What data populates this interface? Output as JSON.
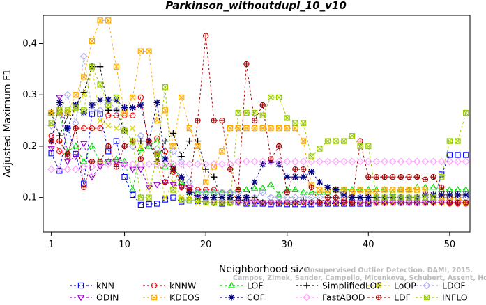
{
  "chart_data": {
    "type": "line",
    "title": "Parkinson_withoutdupl_10_v10",
    "xlabel": "Neighborhood size",
    "ylabel": "Adjusted Maximum F1",
    "xlim": [
      0,
      52.5
    ],
    "ylim": [
      0.033,
      0.455
    ],
    "x_ticks": [
      1,
      10,
      20,
      30,
      40,
      50
    ],
    "y_ticks": [
      0.1,
      0.2,
      0.3,
      0.4
    ],
    "x_tick_labels": [
      "1",
      "10",
      "20",
      "30",
      "40",
      "50"
    ],
    "y_tick_labels": [
      "0.1",
      "0.2",
      "0.3",
      "0.4"
    ],
    "grid": false,
    "legend_position": "bottom",
    "x": [
      1,
      2,
      3,
      4,
      5,
      6,
      7,
      8,
      9,
      10,
      11,
      12,
      13,
      14,
      15,
      16,
      17,
      18,
      19,
      20,
      21,
      22,
      23,
      24,
      25,
      26,
      27,
      28,
      29,
      30,
      31,
      32,
      33,
      34,
      35,
      36,
      37,
      38,
      39,
      40,
      41,
      42,
      43,
      44,
      45,
      46,
      47,
      48,
      49,
      50,
      51,
      52
    ],
    "series": [
      {
        "name": "kNN",
        "color": "#0000ff",
        "marker": "square",
        "values": [
          0.186,
          0.152,
          0.236,
          0.185,
          0.127,
          0.263,
          0.263,
          0.19,
          0.21,
          0.14,
          0.105,
          0.086,
          0.087,
          0.088,
          0.096,
          0.1,
          0.092,
          0.094,
          0.093,
          0.092,
          0.09,
          0.088,
          0.09,
          0.09,
          0.088,
          0.088,
          0.088,
          0.087,
          0.088,
          0.087,
          0.087,
          0.087,
          0.087,
          0.088,
          0.088,
          0.088,
          0.088,
          0.088,
          0.088,
          0.088,
          0.09,
          0.09,
          0.09,
          0.09,
          0.09,
          0.09,
          0.09,
          0.095,
          0.145,
          0.183,
          0.183,
          0.183
        ]
      },
      {
        "name": "kNNW",
        "color": "#ff0000",
        "marker": "circle",
        "values": [
          0.22,
          0.19,
          0.18,
          0.235,
          0.235,
          0.235,
          0.235,
          0.26,
          0.26,
          0.26,
          0.26,
          0.295,
          0.2,
          0.215,
          0.19,
          0.15,
          0.135,
          0.115,
          0.115,
          0.115,
          0.115,
          0.11,
          0.11,
          0.095,
          0.095,
          0.095,
          0.09,
          0.09,
          0.09,
          0.09,
          0.09,
          0.09,
          0.09,
          0.09,
          0.09,
          0.09,
          0.09,
          0.09,
          0.09,
          0.09,
          0.09,
          0.09,
          0.09,
          0.09,
          0.09,
          0.09,
          0.09,
          0.09,
          0.09,
          0.088,
          0.088,
          0.088
        ]
      },
      {
        "name": "LOF",
        "color": "#00dd00",
        "marker": "triangle-up",
        "values": [
          0.265,
          0.265,
          0.19,
          0.2,
          0.17,
          0.2,
          0.17,
          0.17,
          0.175,
          0.17,
          0.115,
          0.195,
          0.2,
          0.21,
          0.16,
          0.16,
          0.13,
          0.11,
          0.11,
          0.11,
          0.11,
          0.11,
          0.11,
          0.115,
          0.115,
          0.118,
          0.118,
          0.125,
          0.105,
          0.115,
          0.115,
          0.11,
          0.11,
          0.11,
          0.11,
          0.115,
          0.115,
          0.115,
          0.115,
          0.115,
          0.115,
          0.115,
          0.11,
          0.115,
          0.115,
          0.12,
          0.12,
          0.12,
          0.115,
          0.115,
          0.115,
          0.115
        ]
      },
      {
        "name": "SimplifiedLOF",
        "color": "#000000",
        "marker": "plus",
        "values": [
          0.265,
          0.22,
          0.26,
          0.28,
          0.305,
          0.355,
          0.355,
          0.27,
          0.27,
          0.23,
          0.21,
          0.21,
          0.21,
          0.17,
          0.21,
          0.225,
          0.18,
          0.21,
          0.21,
          0.155,
          0.14,
          0.09,
          0.1,
          0.09,
          0.1,
          0.1,
          0.09,
          0.09,
          0.09,
          0.09,
          0.09,
          0.095,
          0.09,
          0.09,
          0.09,
          0.09,
          0.09,
          0.09,
          0.09,
          0.09,
          0.09,
          0.09,
          0.09,
          0.09,
          0.09,
          0.09,
          0.09,
          0.09,
          0.09,
          0.09,
          0.09,
          0.09
        ]
      },
      {
        "name": "LoOP",
        "color": "#dddd00",
        "marker": "x",
        "values": [
          0.265,
          0.265,
          0.27,
          0.27,
          0.3,
          0.355,
          0.25,
          0.24,
          0.235,
          0.23,
          0.235,
          0.2,
          0.12,
          0.17,
          0.1,
          0.13,
          0.1,
          0.1,
          0.09,
          0.09,
          0.09,
          0.09,
          0.09,
          0.09,
          0.09,
          0.09,
          0.09,
          0.09,
          0.09,
          0.09,
          0.09,
          0.09,
          0.09,
          0.09,
          0.09,
          0.09,
          0.09,
          0.09,
          0.09,
          0.09,
          0.09,
          0.09,
          0.09,
          0.09,
          0.09,
          0.09,
          0.09,
          0.09,
          0.09,
          0.09,
          0.09,
          0.09
        ]
      },
      {
        "name": "LDOF",
        "color": "#aaaaee",
        "marker": "diamond",
        "values": [
          0.24,
          0.265,
          0.3,
          0.245,
          0.375,
          0.27,
          0.27,
          0.29,
          0.27,
          0.2,
          0.2,
          0.22,
          0.2,
          0.195,
          0.175,
          0.19,
          0.17,
          0.13,
          0.11,
          0.11,
          0.11,
          0.11,
          0.11,
          0.11,
          0.1,
          0.1,
          0.11,
          0.1,
          0.1,
          0.1,
          0.1,
          0.1,
          0.1,
          0.1,
          0.1,
          0.1,
          0.1,
          0.1,
          0.1,
          0.1,
          0.1,
          0.1,
          0.1,
          0.1,
          0.1,
          0.1,
          0.1,
          0.1,
          0.1,
          0.1,
          0.1,
          0.1
        ]
      },
      {
        "name": "ODIN",
        "color": "#9900cc",
        "marker": "triangle-down",
        "values": [
          0.195,
          0.295,
          0.17,
          0.18,
          0.205,
          0.14,
          0.16,
          0.17,
          0.17,
          0.165,
          0.155,
          0.155,
          0.12,
          0.125,
          0.13,
          0.125,
          0.12,
          0.12,
          0.1,
          0.095,
          0.09,
          0.09,
          0.09,
          0.09,
          0.09,
          0.09,
          0.09,
          0.09,
          0.09,
          0.09,
          0.09,
          0.09,
          0.09,
          0.09,
          0.09,
          0.09,
          0.09,
          0.09,
          0.09,
          0.09,
          0.09,
          0.09,
          0.09,
          0.09,
          0.09,
          0.09,
          0.09,
          0.09,
          0.09,
          0.09,
          0.09,
          0.09
        ]
      },
      {
        "name": "KDEOS",
        "color": "#ffaa00",
        "marker": "square-x",
        "values": [
          0.265,
          0.265,
          0.265,
          0.3,
          0.335,
          0.405,
          0.445,
          0.445,
          0.355,
          0.265,
          0.295,
          0.385,
          0.385,
          0.25,
          0.27,
          0.2,
          0.295,
          0.235,
          0.2,
          0.13,
          0.16,
          0.19,
          0.235,
          0.235,
          0.235,
          0.235,
          0.235,
          0.235,
          0.235,
          0.235,
          0.235,
          0.21,
          0.125,
          0.115,
          0.115,
          0.115,
          0.115,
          0.11,
          0.115,
          0.11,
          0.11,
          0.115,
          0.115,
          0.115,
          0.115,
          0.115,
          0.115,
          0.1,
          0.1,
          0.1,
          0.1,
          0.09
        ]
      },
      {
        "name": "COF",
        "color": "#000080",
        "marker": "asterisk",
        "values": [
          0.21,
          0.285,
          0.235,
          0.28,
          0.265,
          0.28,
          0.29,
          0.29,
          0.29,
          0.275,
          0.275,
          0.28,
          0.21,
          0.285,
          0.175,
          0.155,
          0.14,
          0.11,
          0.1,
          0.1,
          0.1,
          0.1,
          0.1,
          0.1,
          0.1,
          0.13,
          0.165,
          0.17,
          0.165,
          0.14,
          0.14,
          0.14,
          0.15,
          0.13,
          0.12,
          0.115,
          0.105,
          0.1,
          0.1,
          0.1,
          0.1,
          0.1,
          0.1,
          0.1,
          0.1,
          0.1,
          0.105,
          0.105,
          0.105,
          0.105,
          0.105,
          0.105
        ]
      },
      {
        "name": "FastABOD",
        "color": "#ff99ff",
        "marker": "diamond",
        "values": [
          0.155,
          0.155,
          0.155,
          0.155,
          0.16,
          0.16,
          0.165,
          0.165,
          0.165,
          0.165,
          0.165,
          0.165,
          0.165,
          0.165,
          0.165,
          0.165,
          0.165,
          0.165,
          0.165,
          0.165,
          0.165,
          0.165,
          0.165,
          0.17,
          0.17,
          0.17,
          0.17,
          0.17,
          0.17,
          0.17,
          0.17,
          0.17,
          0.17,
          0.17,
          0.17,
          0.17,
          0.17,
          0.17,
          0.17,
          0.17,
          0.17,
          0.17,
          0.17,
          0.17,
          0.17,
          0.17,
          0.17,
          0.17,
          0.17,
          0.17,
          0.17,
          0.17
        ]
      },
      {
        "name": "LDF",
        "color": "#aa0000",
        "marker": "circle-plus",
        "values": [
          0.21,
          0.21,
          0.185,
          0.235,
          0.12,
          0.17,
          0.17,
          0.2,
          0.16,
          0.2,
          0.21,
          0.175,
          0.21,
          0.185,
          0.13,
          0.155,
          0.12,
          0.115,
          0.25,
          0.415,
          0.25,
          0.25,
          0.155,
          0.115,
          0.36,
          0.25,
          0.28,
          0.175,
          0.2,
          0.11,
          0.155,
          0.155,
          0.12,
          0.09,
          0.1,
          0.1,
          0.095,
          0.09,
          0.21,
          0.14,
          0.14,
          0.14,
          0.14,
          0.14,
          0.14,
          0.14,
          0.135,
          0.14,
          0.12,
          0.09,
          0.09,
          0.09
        ]
      },
      {
        "name": "INFLO",
        "color": "#99cc00",
        "marker": "square-x",
        "values": [
          0.245,
          0.27,
          0.27,
          0.275,
          0.27,
          0.355,
          0.32,
          0.28,
          0.295,
          0.23,
          0.21,
          0.1,
          0.1,
          0.185,
          0.315,
          0.115,
          0.095,
          0.095,
          0.095,
          0.09,
          0.09,
          0.09,
          0.09,
          0.265,
          0.265,
          0.265,
          0.26,
          0.295,
          0.295,
          0.255,
          0.245,
          0.245,
          0.18,
          0.195,
          0.21,
          0.21,
          0.21,
          0.22,
          0.2,
          0.2,
          0.1,
          0.1,
          0.1,
          0.1,
          0.1,
          0.1,
          0.1,
          0.1,
          0.14,
          0.21,
          0.21,
          0.265
        ]
      }
    ],
    "watermark": [
      "Unsupervised Outlier Detection. DAMI, 2015.",
      "Campos, Zimek, Sander, Campello, Micenkova, Schubert, Assent, Houle"
    ]
  }
}
